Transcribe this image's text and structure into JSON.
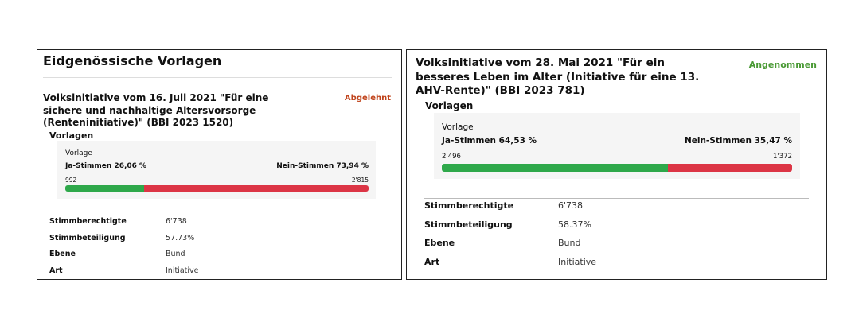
{
  "panels": [
    {
      "header": "Eidgenössische Vorlagen",
      "vote_title": "Volksinitiative vom 16. Juli 2021 \"Für eine sichere und nachhaltige Altersvorsorge (Renteninitiative)\" (BBI 2023 1520)",
      "status": "Abgelehnt",
      "section": "Vorlagen",
      "box_title": "Vorlage",
      "yes": {
        "label": "Ja-Stimmen 26,06 %",
        "share": 26.06,
        "count": "992"
      },
      "no": {
        "label": "Nein-Stimmen 73,94 %",
        "share": 73.94,
        "count": "2'815"
      },
      "rows": [
        [
          "Stimmberechtigte",
          "6'738"
        ],
        [
          "Stimmbeteiligung",
          "57.73%"
        ],
        [
          "Ebene",
          "Bund"
        ],
        [
          "Art",
          "Initiative"
        ]
      ]
    },
    {
      "vote_title": "Volksinitiative vom 28. Mai 2021 \"Für ein besseres Leben im Alter (Initiative für eine 13. AHV-Rente)\" (BBI 2023 781)",
      "status": "Angenommen",
      "section": "Vorlagen",
      "box_title": "Vorlage",
      "yes": {
        "label": "Ja-Stimmen 64,53 %",
        "share": 64.53,
        "count": "2'496"
      },
      "no": {
        "label": "Nein-Stimmen 35,47 %",
        "share": 35.47,
        "count": "1'372"
      },
      "rows": [
        [
          "Stimmberechtigte",
          "6'738"
        ],
        [
          "Stimmbeteiligung",
          "58.37%"
        ],
        [
          "Ebene",
          "Bund"
        ],
        [
          "Art",
          "Initiative"
        ]
      ]
    }
  ]
}
